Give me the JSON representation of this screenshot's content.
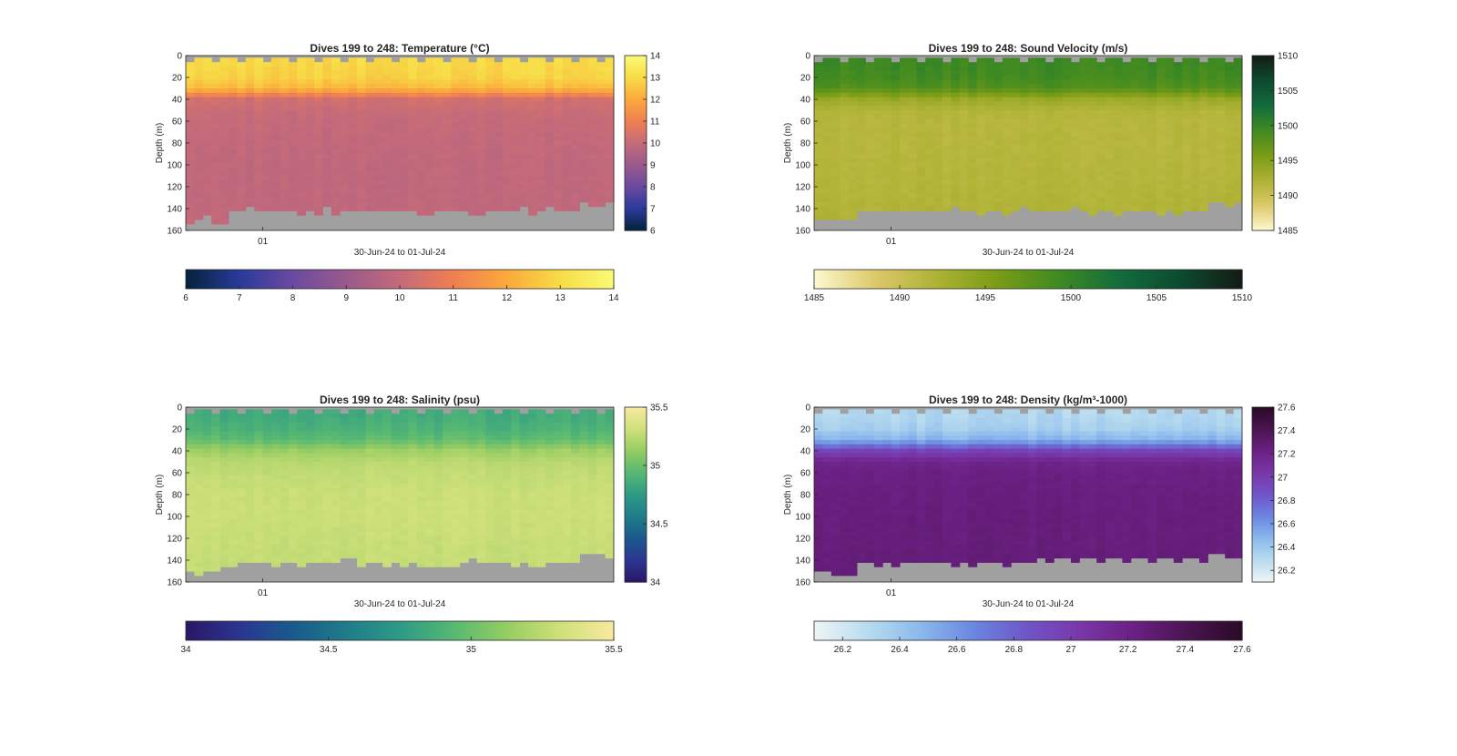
{
  "chart_data": [
    {
      "type": "heatmap",
      "title": "Dives 199 to 248: Temperature (°C)",
      "ylabel": "Depth (m)",
      "xlabel": "30-Jun-24 to 01-Jul-24",
      "x_tick_labels": [
        "01"
      ],
      "y_ticks": [
        0,
        20,
        40,
        60,
        80,
        100,
        120,
        140,
        160
      ],
      "ylim": [
        0,
        160
      ],
      "y_reversed": true,
      "n_dives": 50,
      "profile_depths": [
        0,
        10,
        20,
        30,
        40,
        50,
        60,
        80,
        100,
        120,
        140,
        160
      ],
      "profile_values": [
        13.0,
        12.9,
        12.8,
        12.3,
        10.3,
        10.1,
        10.0,
        9.95,
        9.9,
        9.9,
        9.9,
        9.9
      ],
      "mixed_layer_depth_m": 40,
      "clim": [
        6,
        14
      ],
      "colorbar_ticks": [
        6,
        7,
        8,
        9,
        10,
        11,
        12,
        13,
        14
      ],
      "bottom_colorbar_ticks": [
        6,
        7,
        8,
        9,
        10,
        11,
        12,
        13,
        14
      ],
      "colormap": [
        "#04223a",
        "#2a3a9a",
        "#6a4aa0",
        "#9a5a8c",
        "#c46a7a",
        "#ef7f52",
        "#fba93c",
        "#f7dc47",
        "#fbfa75"
      ]
    },
    {
      "type": "heatmap",
      "title": "Dives 199 to 248: Sound Velocity (m/s)",
      "ylabel": "Depth (m)",
      "xlabel": "30-Jun-24 to 01-Jul-24",
      "x_tick_labels": [
        "01"
      ],
      "y_ticks": [
        0,
        20,
        40,
        60,
        80,
        100,
        120,
        140,
        160
      ],
      "ylim": [
        0,
        160
      ],
      "y_reversed": true,
      "n_dives": 50,
      "profile_depths": [
        0,
        10,
        20,
        30,
        40,
        50,
        60,
        80,
        100,
        120,
        140,
        160
      ],
      "profile_values": [
        1499.5,
        1499.3,
        1499.0,
        1498.0,
        1493.5,
        1491.8,
        1491.5,
        1491.5,
        1491.6,
        1491.7,
        1491.9,
        1492.1
      ],
      "mixed_layer_depth_m": 40,
      "clim": [
        1485,
        1510
      ],
      "colorbar_ticks": [
        1485,
        1490,
        1495,
        1500,
        1505,
        1510
      ],
      "bottom_colorbar_ticks": [
        1485,
        1490,
        1495,
        1500,
        1505,
        1510
      ],
      "colormap": [
        "#fdf8d0",
        "#dcc96a",
        "#aeb234",
        "#7a9c16",
        "#3f8a22",
        "#136c3c",
        "#0d4a30",
        "#131c14"
      ]
    },
    {
      "type": "heatmap",
      "title": "Dives 199 to 248: Salinity (psu)",
      "ylabel": "Depth (m)",
      "xlabel": "30-Jun-24 to 01-Jul-24",
      "x_tick_labels": [
        "01"
      ],
      "y_ticks": [
        0,
        20,
        40,
        60,
        80,
        100,
        120,
        140,
        160
      ],
      "ylim": [
        0,
        160
      ],
      "y_reversed": true,
      "n_dives": 50,
      "profile_depths": [
        0,
        10,
        20,
        30,
        40,
        50,
        60,
        80,
        100,
        120,
        140,
        160
      ],
      "profile_values": [
        34.85,
        34.86,
        34.9,
        34.97,
        35.15,
        35.24,
        35.27,
        35.3,
        35.3,
        35.29,
        35.28,
        35.28
      ],
      "mixed_layer_depth_m": 40,
      "clim": [
        34,
        35.5
      ],
      "colorbar_ticks": [
        34,
        34.5,
        35,
        35.5
      ],
      "bottom_colorbar_ticks": [
        34,
        34.5,
        35,
        35.5
      ],
      "colormap": [
        "#291766",
        "#2c3591",
        "#1a5a8c",
        "#1f7c8a",
        "#2e9a86",
        "#56b873",
        "#96cc62",
        "#cfe07a",
        "#f8eaa0"
      ]
    },
    {
      "type": "heatmap",
      "title": "Dives 199 to 248: Density (kg/m³-1000)",
      "ylabel": "Depth (m)",
      "xlabel": "30-Jun-24 to 01-Jul-24",
      "x_tick_labels": [
        "01"
      ],
      "y_ticks": [
        0,
        20,
        40,
        60,
        80,
        100,
        120,
        140,
        160
      ],
      "ylim": [
        0,
        160
      ],
      "y_reversed": true,
      "n_dives": 50,
      "profile_depths": [
        0,
        10,
        20,
        30,
        40,
        50,
        60,
        80,
        100,
        120,
        140,
        160
      ],
      "profile_values": [
        26.3,
        26.32,
        26.36,
        26.5,
        26.95,
        27.18,
        27.22,
        27.24,
        27.25,
        27.25,
        27.26,
        27.26
      ],
      "mixed_layer_depth_m": 40,
      "clim": [
        26.1,
        27.6
      ],
      "colorbar_ticks": [
        26.2,
        26.4,
        26.6,
        26.8,
        27,
        27.2,
        27.4,
        27.6
      ],
      "bottom_colorbar_ticks": [
        26.2,
        26.4,
        26.6,
        26.8,
        27,
        27.2,
        27.4,
        27.6
      ],
      "colormap": [
        "#eef5f5",
        "#b8dcef",
        "#8ab8ec",
        "#6a86e0",
        "#7054c8",
        "#7a36a8",
        "#6a2082",
        "#4a1450",
        "#2a0a26"
      ]
    }
  ]
}
